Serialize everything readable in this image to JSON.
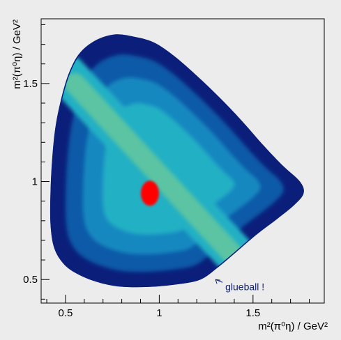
{
  "chart_data": {
    "type": "heatmap",
    "title": "",
    "xlabel": "m²(π⁰η) / GeV²",
    "ylabel": "m²(π⁰η) / GeV²",
    "xlim": [
      0.37,
      1.88
    ],
    "ylim": [
      0.38,
      1.83
    ],
    "x_ticks": [
      0.5,
      1,
      1.5
    ],
    "x_tick_labels": [
      "0.5",
      "1",
      "1.5"
    ],
    "y_ticks": [
      0.5,
      1,
      1.5
    ],
    "y_tick_labels": [
      "0.5",
      "1",
      "1.5"
    ],
    "grid": false,
    "legend": "none",
    "dalitz_boundary": [
      [
        0.58,
        1.66
      ],
      [
        0.66,
        1.72
      ],
      [
        0.76,
        1.75
      ],
      [
        0.86,
        1.74
      ],
      [
        0.97,
        1.71
      ],
      [
        1.08,
        1.64
      ],
      [
        1.2,
        1.54
      ],
      [
        1.32,
        1.43
      ],
      [
        1.44,
        1.31
      ],
      [
        1.56,
        1.18
      ],
      [
        1.66,
        1.08
      ],
      [
        1.75,
        1.0
      ],
      [
        1.77,
        0.94
      ],
      [
        1.72,
        0.88
      ],
      [
        1.63,
        0.81
      ],
      [
        1.52,
        0.73
      ],
      [
        1.41,
        0.64
      ],
      [
        1.31,
        0.56
      ],
      [
        1.22,
        0.5
      ],
      [
        1.1,
        0.476
      ],
      [
        0.94,
        0.462
      ],
      [
        0.78,
        0.465
      ],
      [
        0.66,
        0.49
      ],
      [
        0.56,
        0.53
      ],
      [
        0.49,
        0.58
      ],
      [
        0.44,
        0.66
      ],
      [
        0.42,
        0.78
      ],
      [
        0.42,
        0.95
      ],
      [
        0.43,
        1.13
      ],
      [
        0.45,
        1.3
      ],
      [
        0.49,
        1.47
      ],
      [
        0.53,
        1.58
      ]
    ],
    "bands": [
      {
        "orientation": "horizontal",
        "position": 0.935,
        "x_range": [
          0.64,
          1.76
        ]
      },
      {
        "orientation": "vertical",
        "position": 0.94,
        "y_range": [
          0.63,
          1.72
        ]
      },
      {
        "orientation": "diagonal",
        "note": "x + y ≈ const band, upper-left to lower-right"
      }
    ],
    "peak": {
      "x": 0.95,
      "y": 0.94,
      "level": "max"
    },
    "color_scale": [
      "#0b1f7a",
      "#0f5aa8",
      "#1688c0",
      "#22b0c4",
      "#5cc4a2",
      "#a8cf6a",
      "#ffff00",
      "#ff9a00",
      "#ff0000"
    ],
    "annotations": [
      {
        "text": "glueball !",
        "x": 1.33,
        "y": 0.475,
        "arrow_to": [
          1.3,
          0.5
        ]
      }
    ]
  }
}
